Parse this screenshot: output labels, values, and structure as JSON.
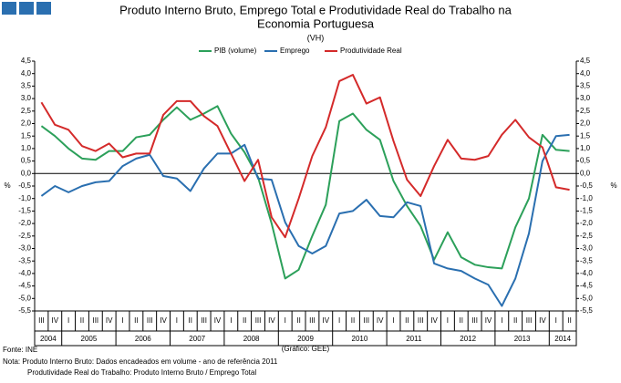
{
  "chart_data": {
    "type": "line",
    "title": [
      "Produto Interno Bruto, Emprego Total e Produtividade Real do Trabalho na",
      "Economia Portuguesa"
    ],
    "subtitle": "(VH)",
    "y_label": "%",
    "x_label": "(Gráfico: GEE)",
    "source": "Fonte: INE",
    "notes": [
      "Nota: Produto Interno Bruto: Dados encadeados em volume - ano de referência 2011",
      "Produtividade Real do Trabalho: Produto Interno Bruto / Emprego Total"
    ],
    "categories": [
      "III",
      "IV",
      "I",
      "II",
      "III",
      "IV",
      "I",
      "II",
      "III",
      "IV",
      "I",
      "II",
      "III",
      "IV",
      "I",
      "II",
      "III",
      "IV",
      "I",
      "II",
      "III",
      "IV",
      "I",
      "II",
      "III",
      "IV",
      "I",
      "II",
      "III",
      "IV",
      "I",
      "II",
      "III",
      "IV",
      "I",
      "II",
      "III",
      "IV",
      "I",
      "II"
    ],
    "years": [
      "2004",
      "2005",
      "2006",
      "2007",
      "2008",
      "2009",
      "2010",
      "2011",
      "2012",
      "2013",
      "2014"
    ],
    "series": [
      {
        "name": "PIB (volume)",
        "color": "#2ca05a",
        "values": [
          1.9,
          1.5,
          1.0,
          0.6,
          0.55,
          0.9,
          0.9,
          1.45,
          1.55,
          2.15,
          2.65,
          2.15,
          2.4,
          2.7,
          1.6,
          0.85,
          -0.15,
          -2.0,
          -4.2,
          -3.85,
          -2.5,
          -1.25,
          2.1,
          2.4,
          1.75,
          1.35,
          -0.3,
          -1.3,
          -2.1,
          -3.45,
          -2.35,
          -3.35,
          -3.65,
          -3.75,
          -3.8,
          -2.15,
          -1.0,
          1.55,
          0.95,
          0.9
        ]
      },
      {
        "name": "Emprego",
        "color": "#2a6fb0",
        "values": [
          -0.9,
          -0.5,
          -0.75,
          -0.5,
          -0.35,
          -0.3,
          0.3,
          0.6,
          0.75,
          -0.1,
          -0.2,
          -0.7,
          0.2,
          0.8,
          0.8,
          1.15,
          -0.2,
          -0.25,
          -1.95,
          -2.9,
          -3.2,
          -2.9,
          -1.6,
          -1.5,
          -1.05,
          -1.7,
          -1.75,
          -1.15,
          -1.3,
          -3.6,
          -3.8,
          -3.9,
          -4.2,
          -4.45,
          -5.3,
          -4.2,
          -2.4,
          0.5,
          1.5,
          1.55
        ]
      },
      {
        "name": "Produtividade Real",
        "color": "#d42a2a",
        "values": [
          2.85,
          1.95,
          1.75,
          1.1,
          0.9,
          1.2,
          0.65,
          0.8,
          0.8,
          2.35,
          2.9,
          2.9,
          2.3,
          1.9,
          0.8,
          -0.3,
          0.55,
          -1.75,
          -2.55,
          -1.0,
          0.7,
          1.85,
          3.7,
          3.95,
          2.8,
          3.05,
          1.3,
          -0.25,
          -0.9,
          0.3,
          1.35,
          0.6,
          0.55,
          0.7,
          1.55,
          2.15,
          1.45,
          1.05,
          -0.55,
          -0.65
        ]
      }
    ],
    "ylim": [
      -5.5,
      4.5
    ],
    "yticks": [
      {
        "value": -5.5,
        "label": "-5,5"
      },
      {
        "value": -5,
        "label": "-5,0"
      },
      {
        "value": -4.5,
        "label": "-4,5"
      },
      {
        "value": -4,
        "label": "-4,0"
      },
      {
        "value": -3.5,
        "label": "-3,5"
      },
      {
        "value": -3,
        "label": "-3,0"
      },
      {
        "value": -2.5,
        "label": "-2,5"
      },
      {
        "value": -2,
        "label": "-2,0"
      },
      {
        "value": -1.5,
        "label": "-1,5"
      },
      {
        "value": -1,
        "label": "-1,0"
      },
      {
        "value": -0.5,
        "label": "-0,5"
      },
      {
        "value": 0,
        "label": "0,0"
      },
      {
        "value": 0.5,
        "label": "0,5"
      },
      {
        "value": 1,
        "label": "1,0"
      },
      {
        "value": 1.5,
        "label": "1,5"
      },
      {
        "value": 2,
        "label": "2,0"
      },
      {
        "value": 2.5,
        "label": "2,5"
      },
      {
        "value": 3,
        "label": "3,0"
      },
      {
        "value": 3.5,
        "label": "3,5"
      },
      {
        "value": 4,
        "label": "4,0"
      },
      {
        "value": 4.5,
        "label": "4,5"
      }
    ],
    "grid": false
  }
}
